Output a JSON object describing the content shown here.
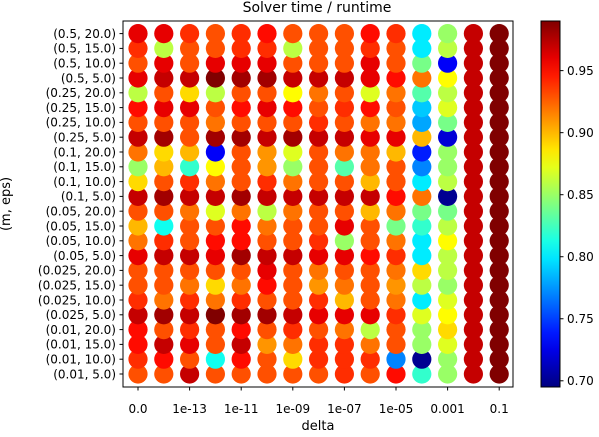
{
  "chart_data": {
    "type": "scatter",
    "title": "Solver time / runtime",
    "xlabel": "delta",
    "ylabel": "(m, eps)",
    "x_tick_labels": [
      "0.0",
      "1e-13",
      "1e-11",
      "1e-09",
      "1e-07",
      "1e-05",
      "0.001",
      "0.1"
    ],
    "x_categories": [
      "0.0",
      "1e-14",
      "1e-13",
      "1e-12",
      "1e-11",
      "1e-10",
      "1e-09",
      "1e-08",
      "1e-07",
      "1e-06",
      "1e-05",
      "0.0001",
      "0.001",
      "0.01",
      "0.1"
    ],
    "y_categories": [
      "(0.01, 5.0)",
      "(0.01, 10.0)",
      "(0.01, 15.0)",
      "(0.01, 20.0)",
      "(0.025, 5.0)",
      "(0.025, 10.0)",
      "(0.025, 15.0)",
      "(0.025, 20.0)",
      "(0.05, 5.0)",
      "(0.05, 10.0)",
      "(0.05, 15.0)",
      "(0.05, 20.0)",
      "(0.1, 5.0)",
      "(0.1, 10.0)",
      "(0.1, 15.0)",
      "(0.1, 20.0)",
      "(0.25, 5.0)",
      "(0.25, 10.0)",
      "(0.25, 15.0)",
      "(0.25, 20.0)",
      "(0.5, 5.0)",
      "(0.5, 10.0)",
      "(0.5, 15.0)",
      "(0.5, 20.0)"
    ],
    "colorbar": {
      "min": 0.695,
      "max": 0.99,
      "ticks": [
        "0.70",
        "0.75",
        "0.80",
        "0.85",
        "0.90",
        "0.95"
      ],
      "colormap": "jet"
    },
    "values": [
      [
        0.93,
        0.93,
        0.97,
        0.93,
        0.93,
        0.93,
        0.93,
        0.93,
        0.94,
        0.93,
        0.95,
        0.82,
        0.85,
        0.97,
        0.99
      ],
      [
        0.94,
        0.95,
        0.93,
        0.81,
        0.95,
        0.93,
        0.89,
        0.94,
        0.94,
        0.94,
        0.77,
        0.7,
        0.85,
        0.97,
        0.99
      ],
      [
        0.95,
        0.97,
        0.96,
        0.93,
        0.97,
        0.91,
        0.92,
        0.94,
        0.94,
        0.92,
        0.93,
        0.85,
        0.87,
        0.97,
        0.99
      ],
      [
        0.95,
        0.93,
        0.94,
        0.93,
        0.95,
        0.93,
        0.94,
        0.93,
        0.92,
        0.86,
        0.93,
        0.85,
        0.89,
        0.97,
        0.99
      ],
      [
        0.97,
        0.98,
        0.97,
        0.99,
        0.98,
        0.98,
        0.97,
        0.96,
        0.96,
        0.96,
        0.94,
        0.87,
        0.88,
        0.97,
        0.99
      ],
      [
        0.94,
        0.92,
        0.94,
        0.92,
        0.94,
        0.93,
        0.93,
        0.94,
        0.9,
        0.93,
        0.92,
        0.8,
        0.87,
        0.97,
        0.99
      ],
      [
        0.93,
        0.93,
        0.92,
        0.89,
        0.92,
        0.95,
        0.93,
        0.91,
        0.92,
        0.93,
        0.91,
        0.86,
        0.85,
        0.97,
        0.99
      ],
      [
        0.93,
        0.93,
        0.93,
        0.93,
        0.93,
        0.96,
        0.93,
        0.92,
        0.93,
        0.93,
        0.92,
        0.89,
        0.86,
        0.97,
        0.99
      ],
      [
        0.96,
        0.97,
        0.97,
        0.96,
        0.98,
        0.97,
        0.97,
        0.96,
        0.96,
        0.95,
        0.94,
        0.8,
        0.86,
        0.97,
        0.99
      ],
      [
        0.92,
        0.94,
        0.93,
        0.95,
        0.95,
        0.93,
        0.93,
        0.94,
        0.85,
        0.93,
        0.92,
        0.8,
        0.88,
        0.97,
        0.99
      ],
      [
        0.9,
        0.81,
        0.93,
        0.93,
        0.95,
        0.92,
        0.93,
        0.93,
        0.96,
        0.93,
        0.84,
        0.82,
        0.86,
        0.97,
        0.99
      ],
      [
        0.93,
        0.93,
        0.92,
        0.87,
        0.92,
        0.86,
        0.92,
        0.93,
        0.93,
        0.9,
        0.92,
        0.84,
        0.84,
        0.97,
        0.99
      ],
      [
        0.97,
        0.98,
        0.97,
        0.97,
        0.98,
        0.97,
        0.97,
        0.97,
        0.97,
        0.97,
        0.95,
        0.92,
        0.7,
        0.97,
        0.99
      ],
      [
        0.89,
        0.93,
        0.94,
        0.92,
        0.93,
        0.94,
        0.92,
        0.93,
        0.93,
        0.9,
        0.93,
        0.8,
        0.86,
        0.97,
        0.99
      ],
      [
        0.85,
        0.9,
        0.82,
        0.88,
        0.93,
        0.91,
        0.85,
        0.93,
        0.83,
        0.92,
        0.93,
        0.77,
        0.85,
        0.97,
        0.99
      ],
      [
        0.92,
        0.89,
        0.9,
        0.73,
        0.93,
        0.91,
        0.87,
        0.93,
        0.92,
        0.92,
        0.9,
        0.74,
        0.85,
        0.97,
        0.99
      ],
      [
        0.97,
        0.98,
        0.93,
        0.98,
        0.98,
        0.97,
        0.98,
        0.97,
        0.97,
        0.96,
        0.96,
        0.9,
        0.72,
        0.97,
        0.99
      ],
      [
        0.93,
        0.93,
        0.93,
        0.92,
        0.93,
        0.93,
        0.93,
        0.94,
        0.93,
        0.92,
        0.92,
        0.78,
        0.84,
        0.97,
        0.99
      ],
      [
        0.95,
        0.96,
        0.96,
        0.93,
        0.95,
        0.96,
        0.95,
        0.93,
        0.94,
        0.95,
        0.93,
        0.79,
        0.87,
        0.97,
        0.99
      ],
      [
        0.86,
        0.93,
        0.89,
        0.86,
        0.93,
        0.93,
        0.88,
        0.92,
        0.93,
        0.87,
        0.92,
        0.83,
        0.86,
        0.97,
        0.99
      ],
      [
        0.96,
        0.97,
        0.97,
        0.99,
        0.98,
        0.98,
        0.97,
        0.97,
        0.97,
        0.96,
        0.95,
        0.92,
        0.88,
        0.97,
        0.99
      ],
      [
        0.93,
        0.96,
        0.93,
        0.96,
        0.96,
        0.96,
        0.93,
        0.93,
        0.93,
        0.96,
        0.93,
        0.84,
        0.73,
        0.97,
        0.99
      ],
      [
        0.94,
        0.86,
        0.93,
        0.93,
        0.94,
        0.94,
        0.86,
        0.93,
        0.93,
        0.94,
        0.93,
        0.8,
        0.86,
        0.97,
        0.99
      ],
      [
        0.96,
        0.96,
        0.94,
        0.93,
        0.94,
        0.95,
        0.93,
        0.93,
        0.93,
        0.95,
        0.94,
        0.8,
        0.85,
        0.97,
        0.99
      ]
    ]
  }
}
